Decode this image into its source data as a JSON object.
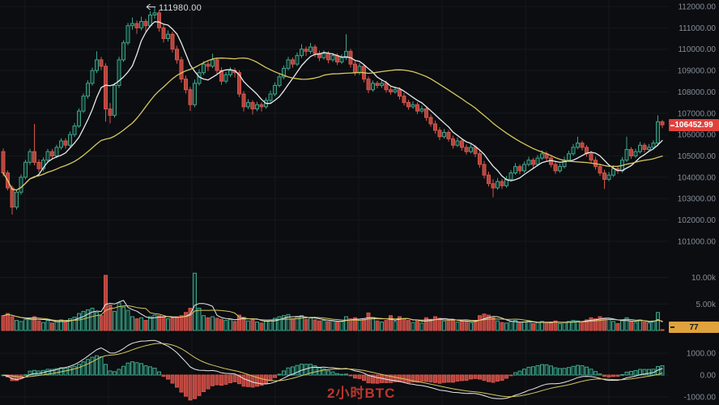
{
  "watermark": {
    "text": "2小时BTC"
  },
  "annotation": {
    "text": "111980.00"
  },
  "badges": {
    "price": "106452.99",
    "volume": "77"
  },
  "colors": {
    "background": "#0b0d10",
    "grid": "#15181e",
    "up_stroke": "#3fa48c",
    "up_fill": "#0e2f28",
    "down_stroke": "#d5544b",
    "down_fill": "#b5443c",
    "ma_fast": "#e8eaed",
    "ma_slow": "#d6c75f",
    "axis_text": "#878d99",
    "price_badge_bg": "#e2413c",
    "volume_badge_bg": "#dfa23c",
    "annotation_text": "#d8dce2",
    "watermark_text": "#cb3a30"
  },
  "axis": {
    "price_labels": [
      {
        "label": "112000.00",
        "value": 112000
      },
      {
        "label": "111000.00",
        "value": 111000
      },
      {
        "label": "110000.00",
        "value": 110000
      },
      {
        "label": "109000.00",
        "value": 109000
      },
      {
        "label": "108000.00",
        "value": 108000
      },
      {
        "label": "107000.00",
        "value": 107000
      },
      {
        "label": "106000.00",
        "value": 106000
      },
      {
        "label": "105000.00",
        "value": 105000
      },
      {
        "label": "104000.00",
        "value": 104000
      },
      {
        "label": "103000.00",
        "value": 103000
      },
      {
        "label": "102000.00",
        "value": 102000
      },
      {
        "label": "101000.00",
        "value": 101000
      }
    ],
    "volume_labels": [
      {
        "label": "10.00k",
        "value": 10000
      },
      {
        "label": "5.00k",
        "value": 5000
      }
    ],
    "macd_labels": [
      {
        "label": "1000.00",
        "value": 1000
      },
      {
        "label": "0.00",
        "value": 0
      },
      {
        "label": "-1000.00",
        "value": -1000
      }
    ]
  },
  "chart_data": {
    "type": "candlestick",
    "timeframe_label": "2小时BTC",
    "panes": [
      "price",
      "volume",
      "macd"
    ],
    "price_axis_range": [
      100700,
      112300
    ],
    "volume_axis_range": [
      0,
      14500
    ],
    "macd_axis_range": [
      -1700,
      1700
    ],
    "high_annotation": 111980.0,
    "last_price": 106452.99,
    "last_volume": 77,
    "overlays": {
      "price_mas": [
        7,
        30
      ],
      "volume_mas": [
        5,
        10
      ],
      "macd_params": [
        12,
        26,
        9
      ]
    },
    "candles": [
      [
        105200,
        105350,
        104050,
        104200,
        2800
      ],
      [
        104200,
        104320,
        103380,
        103500,
        3200
      ],
      [
        103500,
        103620,
        102250,
        102600,
        2600
      ],
      [
        102600,
        103420,
        102480,
        103300,
        1900
      ],
      [
        103300,
        104130,
        103180,
        104000,
        1700
      ],
      [
        104000,
        104820,
        103900,
        104700,
        2100
      ],
      [
        104700,
        105330,
        104580,
        105200,
        2300
      ],
      [
        105200,
        106500,
        104560,
        104700,
        2600
      ],
      [
        104700,
        104840,
        104230,
        104400,
        1800
      ],
      [
        104400,
        104930,
        104280,
        104800,
        1500
      ],
      [
        104800,
        105330,
        104680,
        105200,
        1900
      ],
      [
        105200,
        105330,
        104840,
        105000,
        1400
      ],
      [
        105000,
        105520,
        104900,
        105400,
        1700
      ],
      [
        105400,
        105830,
        105290,
        105700,
        2000
      ],
      [
        105700,
        105830,
        105340,
        105500,
        1600
      ],
      [
        105500,
        106140,
        105400,
        106000,
        2200
      ],
      [
        106000,
        106540,
        105880,
        106400,
        2500
      ],
      [
        106400,
        107230,
        106310,
        107100,
        3200
      ],
      [
        107100,
        107930,
        107010,
        107800,
        3600
      ],
      [
        107800,
        108540,
        107680,
        108400,
        3900
      ],
      [
        108400,
        109140,
        108290,
        109000,
        4200
      ],
      [
        109000,
        109900,
        108880,
        109500,
        3400
      ],
      [
        109500,
        109640,
        109020,
        109200,
        2800
      ],
      [
        109200,
        109340,
        106600,
        107200,
        10400
      ],
      [
        107200,
        107480,
        106520,
        106900,
        4800
      ],
      [
        106900,
        108430,
        106790,
        108300,
        3600
      ],
      [
        108300,
        109640,
        108180,
        109500,
        5200
      ],
      [
        109500,
        110420,
        109400,
        110300,
        4400
      ],
      [
        110300,
        111230,
        110190,
        111100,
        3800
      ],
      [
        111100,
        111480,
        110910,
        111200,
        2600
      ],
      [
        111200,
        111340,
        110720,
        111000,
        2200
      ],
      [
        111000,
        111520,
        110880,
        111300,
        2400
      ],
      [
        111300,
        111420,
        110830,
        111100,
        1900
      ],
      [
        111100,
        111780,
        111010,
        111600,
        2600
      ],
      [
        111600,
        111980,
        111430,
        111700,
        2900
      ],
      [
        111700,
        111830,
        110820,
        111000,
        2800
      ],
      [
        111000,
        111140,
        110310,
        110500,
        2600
      ],
      [
        110500,
        110880,
        110360,
        110700,
        2200
      ],
      [
        110700,
        110820,
        109840,
        110000,
        2400
      ],
      [
        110000,
        110160,
        109320,
        109500,
        2600
      ],
      [
        109500,
        109640,
        108430,
        108600,
        2800
      ],
      [
        108600,
        108760,
        107920,
        108100,
        3400
      ],
      [
        108100,
        108230,
        107100,
        107400,
        4200
      ],
      [
        107400,
        108580,
        107280,
        108400,
        10800
      ],
      [
        108400,
        109060,
        108290,
        108900,
        4200
      ],
      [
        108900,
        109440,
        108790,
        109300,
        2800
      ],
      [
        109300,
        109420,
        108980,
        109200,
        2400
      ],
      [
        109200,
        109790,
        109110,
        109500,
        2600
      ],
      [
        109500,
        109610,
        108840,
        109000,
        2300
      ],
      [
        109000,
        109150,
        108330,
        108500,
        2100
      ],
      [
        108500,
        108940,
        108390,
        108800,
        1900
      ],
      [
        108800,
        109160,
        108690,
        109000,
        2100
      ],
      [
        109000,
        109120,
        108680,
        108900,
        1700
      ],
      [
        108900,
        109010,
        107760,
        107900,
        2900
      ],
      [
        107900,
        108040,
        107080,
        107300,
        2500
      ],
      [
        107300,
        107660,
        107190,
        107500,
        1800
      ],
      [
        107500,
        107610,
        106940,
        107200,
        2100
      ],
      [
        107200,
        107540,
        107090,
        107400,
        1600
      ],
      [
        107400,
        107510,
        107080,
        107300,
        1400
      ],
      [
        107300,
        107740,
        107210,
        107600,
        1800
      ],
      [
        107600,
        108060,
        107490,
        107900,
        2000
      ],
      [
        107900,
        108440,
        107790,
        108300,
        2300
      ],
      [
        108300,
        108860,
        108210,
        108700,
        2600
      ],
      [
        108700,
        109240,
        108590,
        109100,
        2800
      ],
      [
        109100,
        109640,
        109010,
        109500,
        3000
      ],
      [
        109500,
        109610,
        109130,
        109300,
        2200
      ],
      [
        109300,
        109840,
        109210,
        109700,
        2500
      ],
      [
        109700,
        110230,
        109590,
        110000,
        2800
      ],
      [
        110000,
        110130,
        109680,
        109900,
        2100
      ],
      [
        109900,
        110290,
        109790,
        110100,
        2400
      ],
      [
        110100,
        110210,
        109630,
        109800,
        2000
      ],
      [
        109800,
        109930,
        109440,
        109600,
        1800
      ],
      [
        109600,
        109940,
        109510,
        109800,
        1900
      ],
      [
        109800,
        109910,
        109340,
        109500,
        1700
      ],
      [
        109500,
        109830,
        109400,
        109700,
        1800
      ],
      [
        109700,
        109810,
        109260,
        109400,
        1600
      ],
      [
        109400,
        109760,
        109310,
        109600,
        1700
      ],
      [
        109600,
        110700,
        109490,
        109900,
        2600
      ],
      [
        109900,
        110010,
        109140,
        109300,
        2200
      ],
      [
        109300,
        109440,
        108760,
        108900,
        2400
      ],
      [
        108900,
        109340,
        108800,
        109200,
        1900
      ],
      [
        109200,
        109310,
        108440,
        108600,
        2100
      ],
      [
        108600,
        108720,
        107940,
        108100,
        3300
      ],
      [
        108100,
        108530,
        108010,
        108400,
        2400
      ],
      [
        108400,
        108510,
        108160,
        108300,
        1800
      ],
      [
        108300,
        108560,
        108190,
        108400,
        1600
      ],
      [
        108400,
        108520,
        107960,
        108100,
        1900
      ],
      [
        108100,
        108240,
        107860,
        108000,
        2800
      ],
      [
        108000,
        108260,
        107910,
        108100,
        1700
      ],
      [
        108100,
        108210,
        107640,
        107800,
        2600
      ],
      [
        107800,
        107940,
        107360,
        107500,
        2200
      ],
      [
        107500,
        107630,
        107160,
        107300,
        1900
      ],
      [
        107300,
        107560,
        107210,
        107400,
        1500
      ],
      [
        107400,
        107510,
        106960,
        107100,
        1800
      ],
      [
        107100,
        107340,
        107010,
        107200,
        1400
      ],
      [
        107200,
        107310,
        106640,
        106800,
        2400
      ],
      [
        106800,
        106940,
        106360,
        106500,
        2100
      ],
      [
        106500,
        106660,
        106040,
        106200,
        2600
      ],
      [
        106200,
        106340,
        105740,
        105900,
        2300
      ],
      [
        105900,
        106260,
        105810,
        106100,
        1800
      ],
      [
        106100,
        106210,
        105660,
        105800,
        1900
      ],
      [
        105800,
        105940,
        105340,
        105500,
        2000
      ],
      [
        105500,
        105860,
        105410,
        105700,
        1600
      ],
      [
        105700,
        105810,
        105240,
        105400,
        1800
      ],
      [
        105400,
        105540,
        105060,
        105200,
        1700
      ],
      [
        105200,
        105560,
        105110,
        105400,
        1500
      ],
      [
        105400,
        105510,
        104940,
        105100,
        1900
      ],
      [
        105100,
        105260,
        104440,
        104600,
        2800
      ],
      [
        104600,
        104760,
        103940,
        104100,
        3100
      ],
      [
        104100,
        104260,
        103560,
        103700,
        2900
      ],
      [
        103700,
        103910,
        103060,
        103500,
        2400
      ],
      [
        103500,
        103960,
        103410,
        103800,
        1800
      ],
      [
        103800,
        103920,
        103440,
        103600,
        1500
      ],
      [
        103600,
        104060,
        103510,
        103900,
        1400
      ],
      [
        103900,
        104340,
        103810,
        104200,
        1700
      ],
      [
        104200,
        104660,
        104110,
        104500,
        1900
      ],
      [
        104500,
        104610,
        104140,
        104300,
        1400
      ],
      [
        104300,
        104740,
        104210,
        104600,
        1600
      ],
      [
        104600,
        104960,
        104510,
        104800,
        1800
      ],
      [
        104800,
        104910,
        104440,
        104600,
        1300
      ],
      [
        104600,
        105040,
        104510,
        104900,
        1500
      ],
      [
        104900,
        105260,
        104810,
        105100,
        1700
      ],
      [
        105100,
        105210,
        104760,
        104900,
        1400
      ],
      [
        104900,
        105010,
        104460,
        104600,
        1600
      ],
      [
        104600,
        104760,
        104160,
        104300,
        1800
      ],
      [
        104300,
        104640,
        104210,
        104500,
        1300
      ],
      [
        104500,
        104960,
        104410,
        104800,
        1500
      ],
      [
        104800,
        105240,
        104710,
        105100,
        1700
      ],
      [
        105100,
        105560,
        105010,
        105400,
        1900
      ],
      [
        105400,
        105900,
        105310,
        105600,
        1800
      ],
      [
        105600,
        105710,
        105260,
        105400,
        1600
      ],
      [
        105400,
        105510,
        104960,
        105100,
        2000
      ],
      [
        105100,
        105240,
        104660,
        104800,
        2400
      ],
      [
        104800,
        104960,
        104360,
        104500,
        2200
      ],
      [
        104500,
        104640,
        104060,
        104200,
        2600
      ],
      [
        104200,
        104360,
        103450,
        103900,
        2300
      ],
      [
        103900,
        104240,
        103810,
        104100,
        2100
      ],
      [
        104100,
        104560,
        104010,
        104400,
        1700
      ],
      [
        104400,
        104540,
        104160,
        104300,
        1300
      ],
      [
        104300,
        104940,
        104210,
        104800,
        1900
      ],
      [
        104800,
        105900,
        104710,
        105300,
        2400
      ],
      [
        105300,
        105410,
        104860,
        105000,
        1700
      ],
      [
        105000,
        105340,
        104910,
        105200,
        1500
      ],
      [
        105200,
        105660,
        105110,
        105500,
        2000
      ],
      [
        105500,
        105610,
        105160,
        105300,
        1600
      ],
      [
        105300,
        105560,
        105210,
        105400,
        1400
      ],
      [
        105400,
        105740,
        105310,
        105600,
        1800
      ],
      [
        105600,
        106900,
        105450,
        106600,
        3400
      ],
      [
        106600,
        106680,
        106300,
        106452.99,
        77
      ]
    ]
  }
}
